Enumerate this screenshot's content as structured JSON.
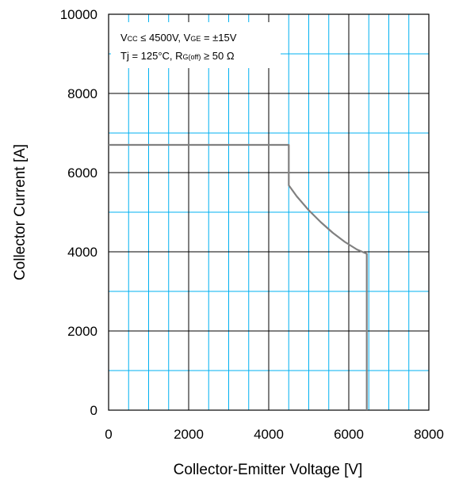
{
  "chart_data": {
    "type": "line",
    "title": "",
    "xlabel": "Collector-Emitter Voltage [V]",
    "ylabel": "Collector Current [A]",
    "xlim": [
      0,
      8000
    ],
    "ylim": [
      0,
      10000
    ],
    "x_ticks": [
      0,
      2000,
      4000,
      6000,
      8000
    ],
    "y_ticks": [
      0,
      2000,
      4000,
      6000,
      8000,
      10000
    ],
    "x_tick_labels": [
      "0",
      "2000",
      "4000",
      "6000",
      "8000"
    ],
    "y_tick_labels": [
      "0",
      "2000",
      "4000",
      "6000",
      "8000",
      "10000"
    ],
    "grid": {
      "major": true,
      "minor": true,
      "major_color": "#000000",
      "minor_color": "#00b0f0",
      "x_minor_step": 500,
      "y_minor_step": 1000
    },
    "annotation": {
      "line1": {
        "p1": "V",
        "s1": "CC",
        "p2": " ≤ 4500V, V",
        "s2": "GE",
        "p3": " = ±15V"
      },
      "line2": {
        "p1": "Tj = 125°C, R",
        "s1": "G(off)",
        "p2": " ≥ 50 Ω"
      }
    },
    "series": [
      {
        "color": "#808080",
        "x": [
          0,
          4500,
          4500,
          4700,
          5000,
          5300,
          5600,
          5900,
          6200,
          6450,
          6450
        ],
        "y": [
          6700,
          6700,
          5680,
          5400,
          5050,
          4750,
          4480,
          4250,
          4060,
          3950,
          0
        ]
      }
    ]
  }
}
